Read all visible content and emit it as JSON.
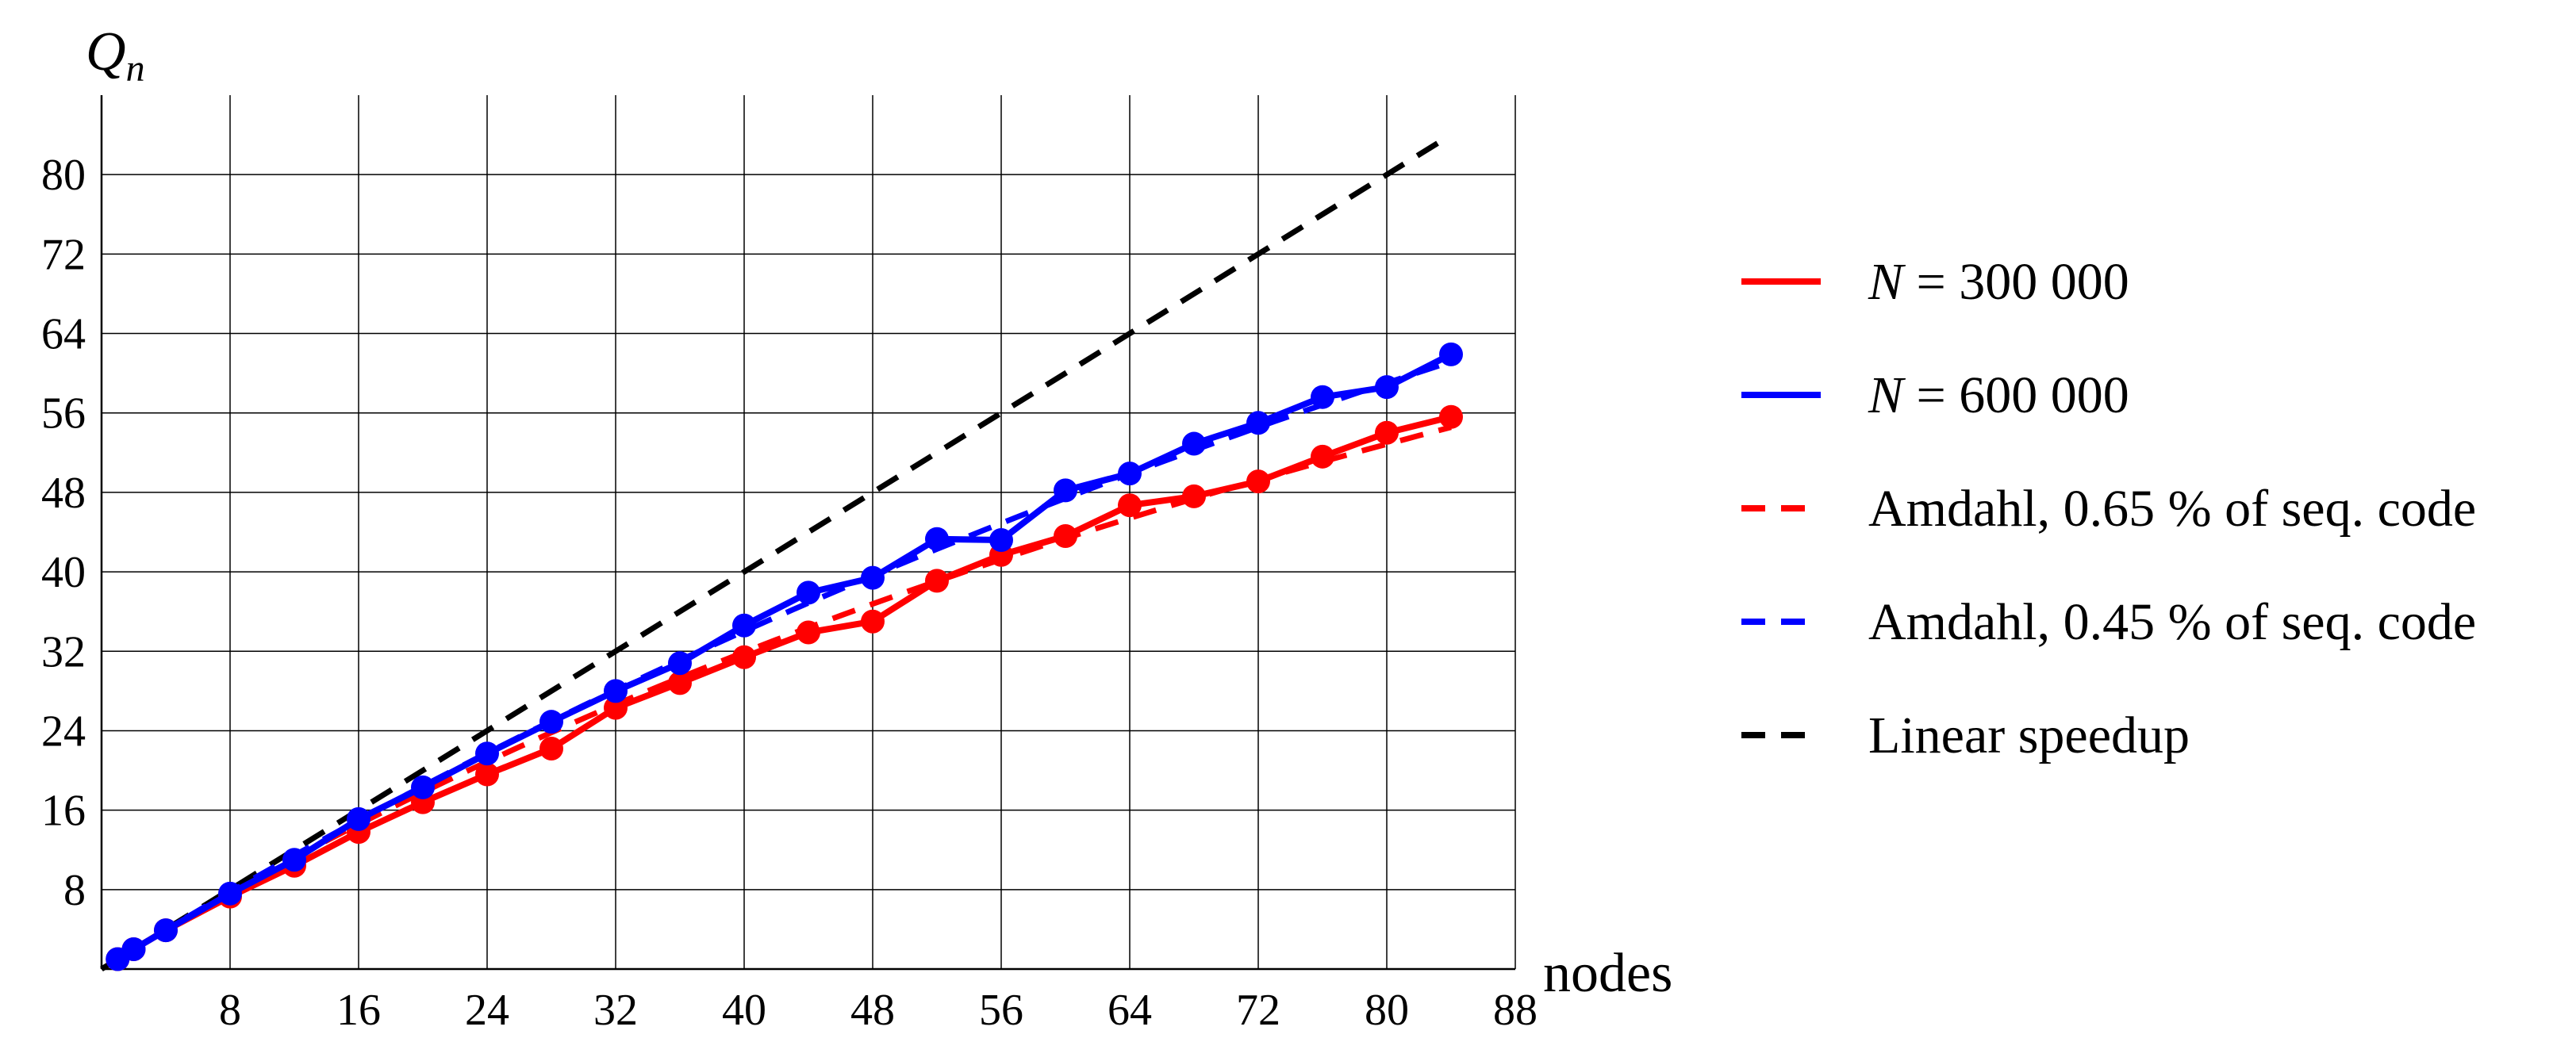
{
  "chart_data": {
    "type": "line",
    "ylabel_main": "Q",
    "ylabel_sub": "n",
    "xlabel": "nodes",
    "xlim": [
      0,
      88
    ],
    "ylim": [
      0,
      88
    ],
    "xticks": [
      8,
      16,
      24,
      32,
      40,
      48,
      56,
      64,
      72,
      80,
      88
    ],
    "yticks": [
      8,
      16,
      24,
      32,
      40,
      48,
      56,
      64,
      72,
      80
    ],
    "grid": true,
    "legend_position": "right",
    "series": [
      {
        "name": "N = 300 000",
        "legend_var": "N",
        "legend_rest": " = 300 000",
        "color": "#ff0000",
        "style": "solid",
        "markers": true,
        "points": [
          [
            1,
            1
          ],
          [
            2,
            2
          ],
          [
            4,
            3.9
          ],
          [
            8,
            7.3
          ],
          [
            12,
            10.4
          ],
          [
            16,
            13.8
          ],
          [
            20,
            16.8
          ],
          [
            24,
            19.6
          ],
          [
            28,
            22.2
          ],
          [
            32,
            26.3
          ],
          [
            36,
            28.8
          ],
          [
            40,
            31.4
          ],
          [
            44,
            33.9
          ],
          [
            48,
            35.0
          ],
          [
            52,
            39.1
          ],
          [
            56,
            41.7
          ],
          [
            60,
            43.6
          ],
          [
            64,
            46.7
          ],
          [
            68,
            47.6
          ],
          [
            72,
            49.1
          ],
          [
            76,
            51.6
          ],
          [
            80,
            54.0
          ],
          [
            84,
            55.6
          ]
        ]
      },
      {
        "name": "N = 600 000",
        "legend_var": "N",
        "legend_rest": " = 600 000",
        "color": "#0000ff",
        "style": "solid",
        "markers": true,
        "points": [
          [
            1,
            1
          ],
          [
            2,
            2
          ],
          [
            4,
            3.9
          ],
          [
            8,
            7.6
          ],
          [
            12,
            11.0
          ],
          [
            16,
            15.1
          ],
          [
            20,
            18.3
          ],
          [
            24,
            21.7
          ],
          [
            28,
            24.9
          ],
          [
            32,
            28.0
          ],
          [
            36,
            30.8
          ],
          [
            40,
            34.6
          ],
          [
            44,
            37.9
          ],
          [
            48,
            39.4
          ],
          [
            52,
            43.3
          ],
          [
            56,
            43.2
          ],
          [
            60,
            48.2
          ],
          [
            64,
            49.9
          ],
          [
            68,
            52.9
          ],
          [
            72,
            55.0
          ],
          [
            76,
            57.6
          ],
          [
            80,
            58.6
          ],
          [
            84,
            61.9
          ]
        ]
      },
      {
        "name": "Amdahl, 0.65 % of seq. code",
        "color": "#ff0000",
        "style": "dashed",
        "markers": false,
        "seq_fraction": 0.0065
      },
      {
        "name": "Amdahl, 0.45 % of seq. code",
        "color": "#0000ff",
        "style": "dashed",
        "markers": false,
        "seq_fraction": 0.0045
      },
      {
        "name": "Linear speedup",
        "color": "#000000",
        "style": "dashed",
        "markers": false,
        "points": [
          [
            0,
            0
          ],
          [
            84,
            84
          ]
        ]
      }
    ]
  }
}
